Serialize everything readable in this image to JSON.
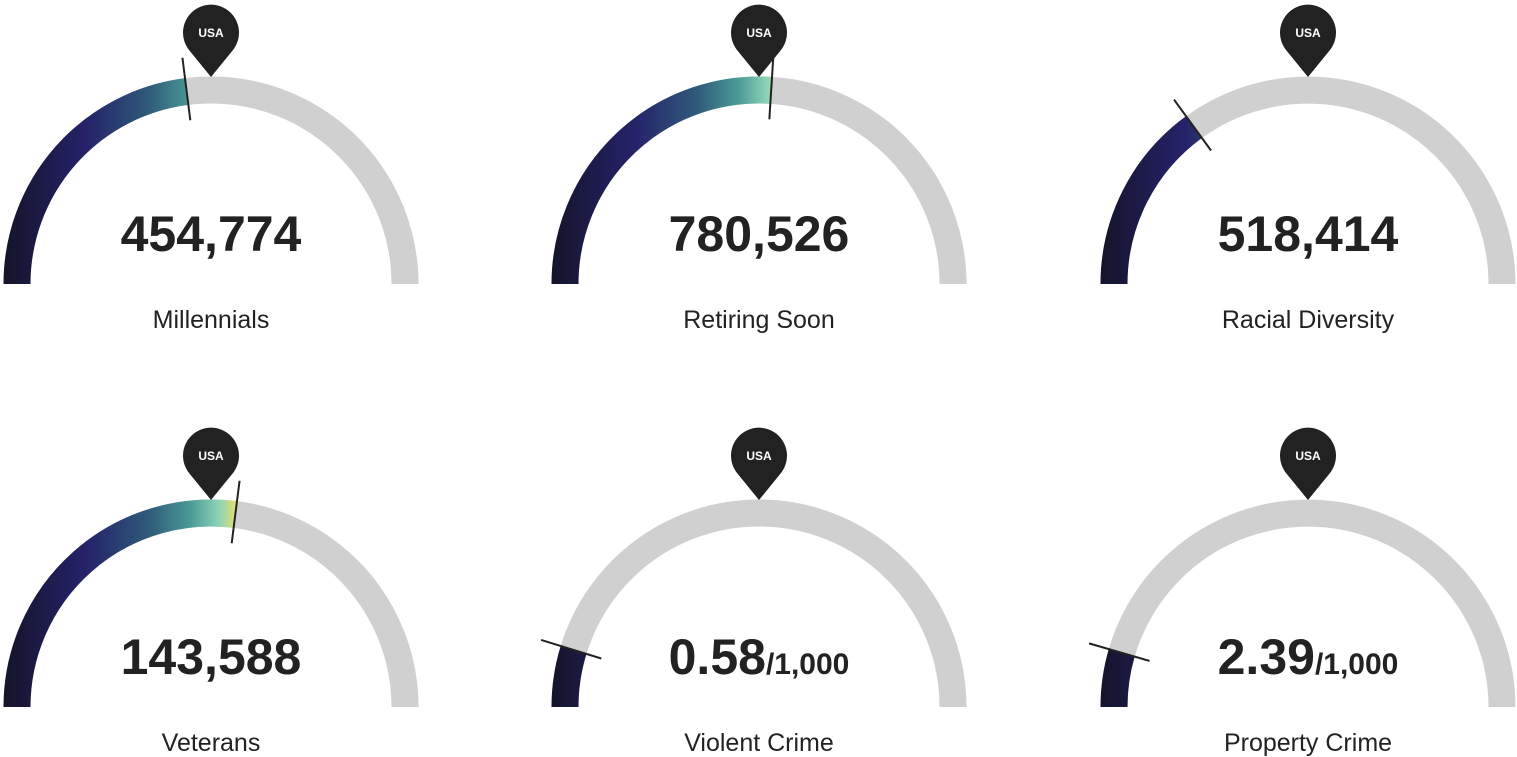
{
  "gauges": [
    {
      "pin": "USA",
      "value": "454,774",
      "label": "Millennials",
      "fill": 46
    },
    {
      "pin": "USA",
      "value": "780,526",
      "label": "Retiring Soon",
      "fill": 52
    },
    {
      "pin": "USA",
      "value": "518,414",
      "label": "Racial Diversity",
      "fill": 30
    },
    {
      "pin": "USA",
      "value": "143,588",
      "label": "Veterans",
      "fill": 54
    },
    {
      "pin": "USA",
      "value": "0.58",
      "suffix": "/1,000",
      "label": "Violent Crime",
      "fill": 9.5
    },
    {
      "pin": "USA",
      "value": "2.39",
      "suffix": "/1,000",
      "label": "Property Crime",
      "fill": 9
    }
  ]
}
